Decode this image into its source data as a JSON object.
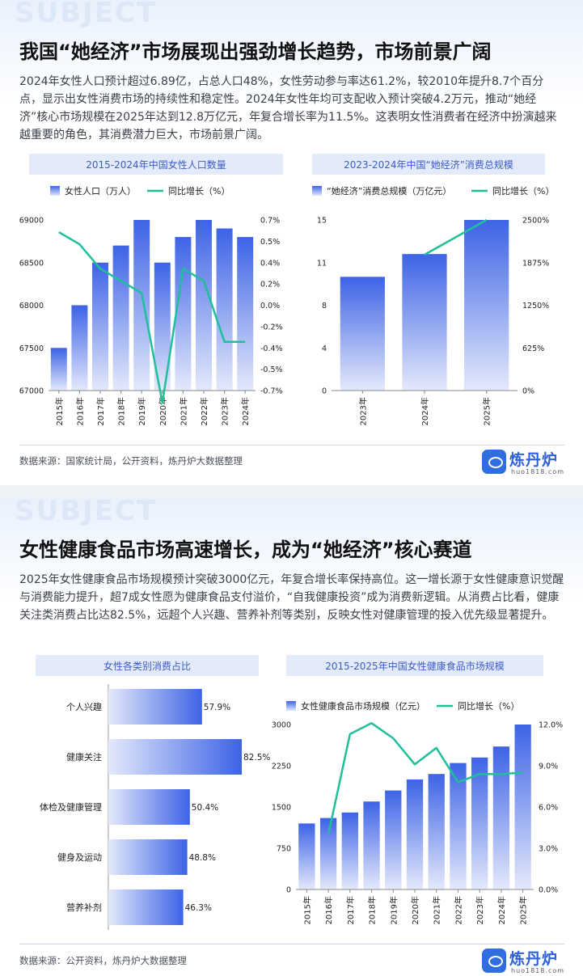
{
  "panel1": {
    "watermark": "SUBJECT",
    "title": "我国“她经济”市场展现出强劲增长趋势，市场前景广阔",
    "paragraph": "2024年女性人口预计超过6.89亿，占总人口48%，女性劳动参与率达61.2%，较2010年提升8.7个百分点，显示出女性消费市场的持续性和稳定性。2024年女性年均可支配收入预计突破4.2万元，推动“她经济”核心市场规模在2025年达到12.8万亿元，年复合增长率为11.5%。这表明女性消费者在经济中扮演越来越重要的角色，其消费潜力巨大，市场前景广阔。",
    "source": "数据来源：国家统计局，公开资料，炼丹炉大数据整理"
  },
  "panel2": {
    "watermark": "SUBJECT",
    "title": "女性健康食品市场高速增长，成为“她经济”核心赛道",
    "paragraph": "2025年女性健康食品市场规模预计突破3000亿元，年复合增长率保持高位。这一增长源于女性健康意识觉醒与消费能力提升，超7成女性愿为健康食品支付溢价，“自我健康投资”成为消费新逻辑。从消费占比看，健康关注类消费占比达82.5%，远超个人兴趣、营养补剂等类别，反映女性对健康管理的投入优先级显著提升。",
    "source": "数据来源：公开资料，炼丹炉大数据整理"
  },
  "logo": {
    "name": "炼丹炉",
    "url": "huo1818.com"
  },
  "colors": {
    "bar_top": "#3d63e6",
    "bar_bottom": "#e4e9fb",
    "line": "#1fbf9a",
    "title_bar": "#e3ebfa",
    "title_text": "#3d5cc7"
  },
  "chart_data": [
    {
      "type": "bar",
      "title": "2015-2024年中国女性人口数量",
      "categories": [
        "2015年",
        "2016年",
        "2017年",
        "2018年",
        "2019年",
        "2020年",
        "2021年",
        "2022年",
        "2023年",
        "2024年"
      ],
      "series": [
        {
          "name": "女性人口（万人）",
          "type": "bar",
          "axis": "left",
          "values": [
            67500,
            68000,
            68500,
            68700,
            69000,
            68500,
            68800,
            69000,
            68900,
            68800
          ]
        },
        {
          "name": "同比增长（%）",
          "type": "line",
          "axis": "right",
          "values": [
            0.6,
            0.5,
            0.3,
            0.2,
            0.1,
            -0.8,
            0.3,
            0.2,
            -0.3,
            -0.3
          ]
        }
      ],
      "ylim": [
        67000,
        69000
      ],
      "yticks": [
        "69000",
        "68500",
        "68000",
        "67500",
        "67000"
      ],
      "y2lim": [
        -0.7,
        0.7
      ],
      "y2ticks": [
        "0.7%",
        "0.5%",
        "0.4%",
        "0.2%",
        "0.0%",
        "-0.2%",
        "-0.4%",
        "-0.5%",
        "-0.7%"
      ],
      "legend": "top-left"
    },
    {
      "type": "bar",
      "title": "2023-2024年中国“她经济”消费总规模",
      "categories": [
        "2023年",
        "2024年",
        "2025年"
      ],
      "series": [
        {
          "name": "“她经济”消费总规模（万亿元）",
          "type": "bar",
          "axis": "left",
          "values": [
            10,
            12,
            15
          ]
        },
        {
          "name": "同比增长（%）",
          "type": "line",
          "axis": "right",
          "values": [
            null,
            1990,
            2500
          ]
        }
      ],
      "ylim": [
        0,
        15
      ],
      "yticks": [
        "15",
        "11",
        "8",
        "4",
        "0"
      ],
      "y2lim": [
        0,
        2500
      ],
      "y2ticks": [
        "2500%",
        "1875%",
        "1250%",
        "625%",
        "0%"
      ],
      "legend": "top-left"
    },
    {
      "type": "bar",
      "orientation": "horizontal",
      "title": "女性各类别消费占比",
      "categories": [
        "个人兴趣",
        "健康关注",
        "体检及健康管理",
        "健身及运动",
        "营养补剂"
      ],
      "values": [
        57.9,
        82.5,
        50.4,
        48.8,
        46.3
      ],
      "labels": [
        "57.9%",
        "82.5%",
        "50.4%",
        "48.8%",
        "46.3%"
      ],
      "xlim": [
        0,
        100
      ]
    },
    {
      "type": "bar",
      "title": "2015-2025年中国女性健康食品市场规模",
      "categories": [
        "2015年",
        "2016年",
        "2017年",
        "2018年",
        "2019年",
        "2020年",
        "2021年",
        "2022年",
        "2023年",
        "2024年",
        "2025年"
      ],
      "series": [
        {
          "name": "女性健康食品市场规模（亿元）",
          "type": "bar",
          "axis": "left",
          "values": [
            1200,
            1300,
            1400,
            1600,
            1800,
            2000,
            2100,
            2300,
            2400,
            2600,
            3000
          ]
        },
        {
          "name": "同比增长（%）",
          "type": "line",
          "axis": "right",
          "values": [
            null,
            4.0,
            11.3,
            12.1,
            11.0,
            9.1,
            10.3,
            7.8,
            8.4,
            8.4,
            8.5
          ]
        }
      ],
      "ylim": [
        0,
        3000
      ],
      "yticks": [
        "3000",
        "2250",
        "1500",
        "750",
        "0"
      ],
      "y2lim": [
        0,
        12
      ],
      "y2ticks": [
        "12.0%",
        "9.0%",
        "6.0%",
        "3.0%",
        "0.0%"
      ],
      "legend": "top-left"
    }
  ]
}
